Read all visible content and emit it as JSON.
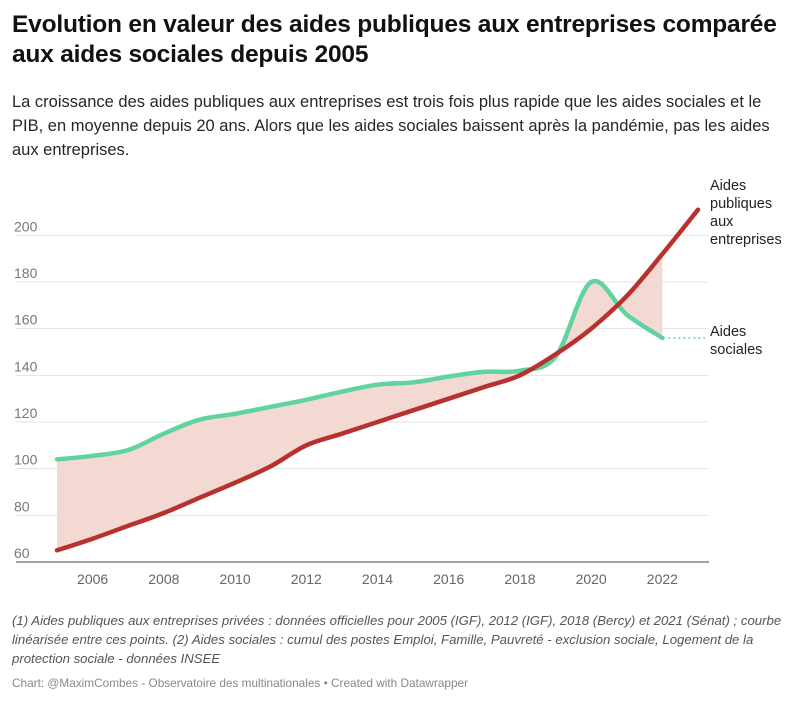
{
  "title": "Evolution en valeur des aides publiques aux entreprises comparée aux aides sociales depuis 2005",
  "subtitle": "La croissance des aides publiques aux entreprises est trois fois plus rapide que les aides sociales et le PIB, en moyenne depuis 20 ans. Alors que les aides sociales baissent après la pandémie, pas les aides aux entreprises.",
  "notes": "(1) Aides publiques aux entreprises privées : données officielles pour 2005 (IGF), 2012 (IGF), 2018 (Bercy) et 2021 (Sénat) ; courbe linéarisée entre ces points. (2) Aides sociales : cumul des postes Emploi, Famille, Pauvreté - exclusion sociale, Logement de la protection sociale - données INSEE",
  "credit": "Chart: @MaximCombes - Observatoire des multinationales • Created with Datawrapper",
  "chart_data": {
    "type": "line",
    "xlim": [
      2005,
      2023
    ],
    "ylim": [
      60,
      210
    ],
    "x_ticks": [
      2006,
      2008,
      2010,
      2012,
      2014,
      2016,
      2018,
      2020,
      2022
    ],
    "y_ticks": [
      60,
      80,
      100,
      120,
      140,
      160,
      180,
      200
    ],
    "grid": true,
    "fill_between_series": true,
    "series": [
      {
        "name": "Aides publiques aux entreprises",
        "label_lines": [
          "Aides",
          "publiques",
          "aux",
          "entreprises"
        ],
        "color": "#b8312f",
        "x": [
          2005,
          2006,
          2007,
          2008,
          2009,
          2010,
          2011,
          2012,
          2013,
          2014,
          2015,
          2016,
          2017,
          2018,
          2019,
          2020,
          2021,
          2022,
          2023
        ],
        "y": [
          65,
          70,
          75.5,
          81,
          87.5,
          94,
          101,
          110,
          115,
          120,
          125,
          130,
          135,
          140,
          149,
          160,
          174,
          192,
          211
        ]
      },
      {
        "name": "Aides sociales",
        "label_lines": [
          "Aides",
          "sociales"
        ],
        "color": "#5fd3a0",
        "x": [
          2005,
          2006,
          2007,
          2008,
          2009,
          2010,
          2011,
          2012,
          2013,
          2014,
          2015,
          2016,
          2017,
          2018,
          2019,
          2020,
          2021,
          2022
        ],
        "y": [
          104,
          105.5,
          108,
          115,
          121,
          123.5,
          126.5,
          129.5,
          133,
          136,
          137,
          139.5,
          141.5,
          142,
          148,
          180,
          166,
          156
        ]
      }
    ]
  }
}
